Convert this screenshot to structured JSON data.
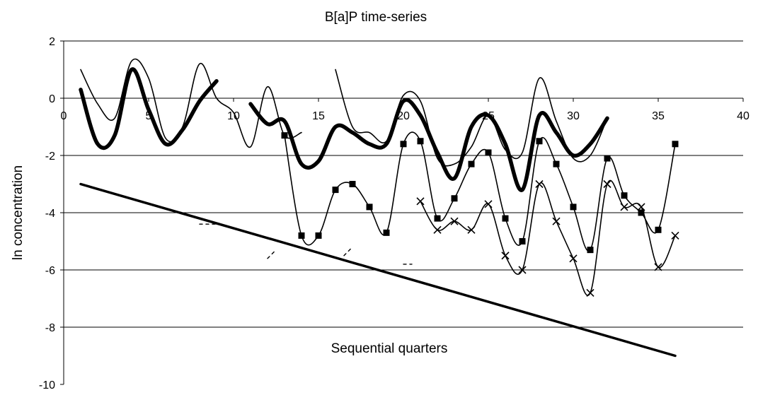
{
  "chart_data": {
    "type": "line",
    "title": "B[a]P time-series",
    "xlabel": "Sequential quarters",
    "ylabel": "ln concentration",
    "xlim": [
      0,
      40
    ],
    "ylim": [
      -10,
      2
    ],
    "x_ticks": [
      0,
      5,
      10,
      15,
      20,
      25,
      30,
      35,
      40
    ],
    "y_ticks": [
      2,
      0,
      -2,
      -4,
      -6,
      -8,
      -10
    ],
    "grid": "horizontal",
    "legend": "none",
    "series": [
      {
        "style": "thin",
        "segments": [
          [
            [
              1,
              1.0
            ],
            [
              2,
              -0.2
            ],
            [
              3,
              -0.7
            ],
            [
              4,
              1.3
            ],
            [
              5,
              0.7
            ],
            [
              6,
              -1.4
            ],
            [
              7,
              -1.0
            ],
            [
              8,
              1.2
            ],
            [
              9,
              0.0
            ],
            [
              10,
              -0.5
            ],
            [
              11,
              -1.7
            ],
            [
              12,
              0.4
            ],
            [
              13,
              -1.3
            ],
            [
              14,
              -1.2
            ]
          ],
          [
            [
              16,
              1.0
            ],
            [
              17,
              -1.0
            ],
            [
              18,
              -1.2
            ],
            [
              19,
              -1.5
            ],
            [
              20,
              0.1
            ],
            [
              21,
              -0.1
            ],
            [
              22,
              -2.1
            ],
            [
              23,
              -2.3
            ],
            [
              24,
              -1.7
            ],
            [
              25,
              -0.6
            ],
            [
              26,
              -1.8
            ],
            [
              27,
              -1.9
            ],
            [
              28,
              0.7
            ],
            [
              29,
              -0.8
            ],
            [
              30,
              -2.1
            ],
            [
              31,
              -2.0
            ],
            [
              32,
              -0.7
            ]
          ]
        ]
      },
      {
        "style": "thick",
        "segments": [
          [
            [
              1,
              0.3
            ],
            [
              2,
              -1.6
            ],
            [
              3,
              -1.3
            ],
            [
              4,
              1.0
            ],
            [
              5,
              -0.4
            ],
            [
              6,
              -1.6
            ],
            [
              7,
              -1.1
            ],
            [
              8,
              -0.1
            ],
            [
              9,
              0.6
            ]
          ],
          [
            [
              11,
              -0.2
            ],
            [
              12,
              -0.9
            ],
            [
              13,
              -0.8
            ],
            [
              14,
              -2.3
            ],
            [
              15,
              -2.2
            ],
            [
              16,
              -1.0
            ],
            [
              17,
              -1.2
            ],
            [
              18,
              -1.6
            ],
            [
              19,
              -1.6
            ],
            [
              20,
              -0.1
            ],
            [
              21,
              -0.6
            ],
            [
              22,
              -1.9
            ],
            [
              23,
              -2.8
            ],
            [
              24,
              -1.0
            ],
            [
              25,
              -0.6
            ],
            [
              26,
              -1.6
            ],
            [
              27,
              -3.2
            ],
            [
              28,
              -0.6
            ],
            [
              29,
              -1.2
            ],
            [
              30,
              -2.0
            ],
            [
              31,
              -1.6
            ],
            [
              32,
              -0.7
            ]
          ]
        ]
      },
      {
        "style": "square-markers",
        "segments": [
          [
            [
              13,
              -1.3
            ],
            [
              14,
              -4.8
            ],
            [
              15,
              -4.8
            ],
            [
              16,
              -3.2
            ],
            [
              17,
              -3.0
            ],
            [
              18,
              -3.8
            ],
            [
              19,
              -4.7
            ],
            [
              20,
              -1.6
            ],
            [
              21,
              -1.5
            ],
            [
              22,
              -4.2
            ],
            [
              23,
              -3.5
            ],
            [
              24,
              -2.3
            ],
            [
              25,
              -1.9
            ],
            [
              26,
              -4.2
            ],
            [
              27,
              -5.0
            ],
            [
              28,
              -1.5
            ],
            [
              29,
              -2.3
            ],
            [
              30,
              -3.8
            ],
            [
              31,
              -5.3
            ],
            [
              32,
              -2.1
            ],
            [
              33,
              -3.4
            ],
            [
              34,
              -4.0
            ],
            [
              35,
              -4.6
            ],
            [
              36,
              -1.6
            ]
          ]
        ]
      },
      {
        "style": "x-markers",
        "segments": [
          [
            [
              21,
              -3.6
            ],
            [
              22,
              -4.6
            ],
            [
              23,
              -4.3
            ],
            [
              24,
              -4.6
            ],
            [
              25,
              -3.7
            ],
            [
              26,
              -5.5
            ],
            [
              27,
              -6.0
            ],
            [
              28,
              -3.0
            ],
            [
              29,
              -4.3
            ],
            [
              30,
              -5.6
            ],
            [
              31,
              -6.8
            ],
            [
              32,
              -3.0
            ],
            [
              33,
              -3.8
            ],
            [
              34,
              -3.8
            ],
            [
              35,
              -5.9
            ],
            [
              36,
              -4.8
            ]
          ]
        ]
      },
      {
        "style": "trend",
        "segments": [
          [
            [
              1,
              -3.0
            ],
            [
              36,
              -9.0
            ]
          ]
        ]
      },
      {
        "style": "dashed-fragments",
        "segments": [
          [
            [
              8,
              -4.4
            ],
            [
              9,
              -4.4
            ]
          ],
          [
            [
              12,
              -5.6
            ],
            [
              12.5,
              -5.3
            ]
          ],
          [
            [
              16.5,
              -5.5
            ],
            [
              17,
              -5.2
            ]
          ],
          [
            [
              20,
              -5.8
            ],
            [
              20.5,
              -5.8
            ]
          ]
        ]
      }
    ]
  }
}
